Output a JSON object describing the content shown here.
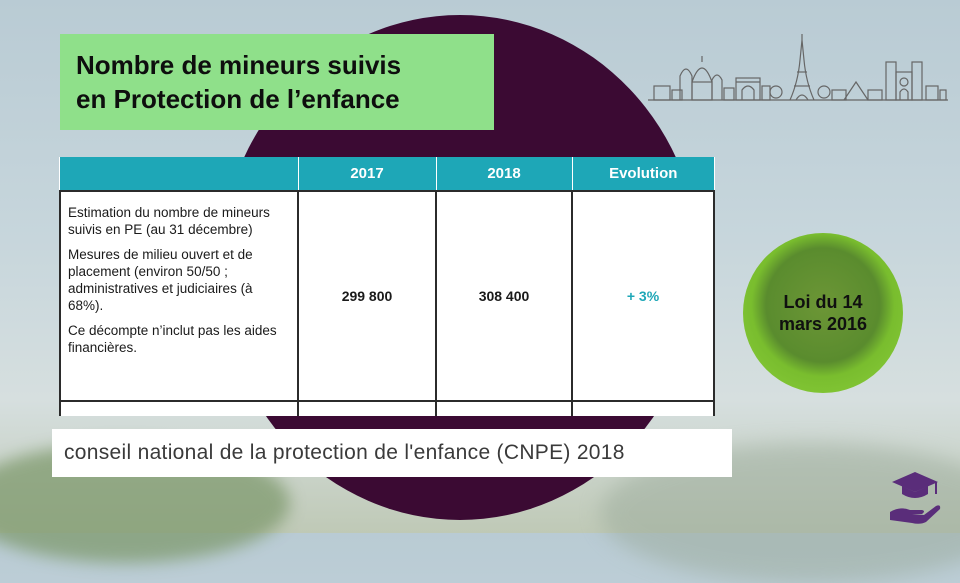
{
  "title": {
    "line1": "Nombre de mineurs suivis",
    "line2": "en Protection de l’enfance"
  },
  "table": {
    "headers": [
      "",
      "2017",
      "2018",
      "Evolution"
    ],
    "description": [
      "Estimation du nombre de mineurs suivis en PE (au 31 décembre)",
      "Mesures de milieu ouvert et de placement (environ 50/50 ; administratives et judiciaires (à 68%).",
      "Ce décompte n’inclut pas les aides financières."
    ],
    "value_2017": "299 800",
    "value_2018": "308 400",
    "evolution": "+ 3%"
  },
  "source": "conseil national de la protection de l'enfance (CNPE) 2018",
  "law_badge": {
    "line1": "Loi du 14",
    "line2": "mars 2016"
  },
  "colors": {
    "title_bg": "#8fe08a",
    "table_header": "#1ea7b7",
    "circle": "#3b0a33",
    "badge": "#79bd2e",
    "logo": "#5a2d7a"
  },
  "icons": [
    "paris-skyline-icon",
    "graduation-cap-hand-icon"
  ]
}
